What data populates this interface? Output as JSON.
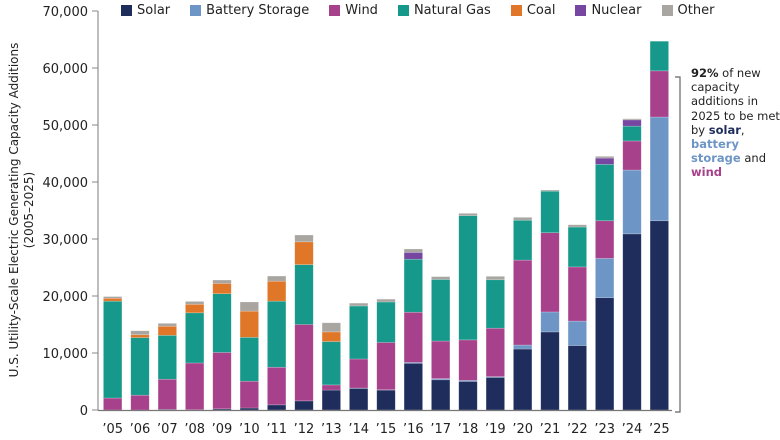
{
  "chart_data": {
    "type": "bar",
    "stacked": true,
    "title": "",
    "xlabel": "",
    "ylabel": "U.S. Utility-Scale Electric Generating Capacity Additions",
    "ylabel_sub": "(2005–2025)",
    "ylim": [
      0,
      70000
    ],
    "yticks": [
      0,
      10000,
      20000,
      30000,
      40000,
      50000,
      60000,
      70000
    ],
    "ytick_labels": [
      "0",
      "10,000",
      "20,000",
      "30,000",
      "40,000",
      "50,000",
      "60,000",
      "70,000"
    ],
    "grid": false,
    "legend_position": "top",
    "categories": [
      "’05",
      "’06",
      "’07",
      "’08",
      "’09",
      "’10",
      "’11",
      "’12",
      "’13",
      "’14",
      "’15",
      "’16",
      "’17",
      "’18",
      "’19",
      "’20",
      "’21",
      "’22",
      "’23",
      "’24",
      "’25"
    ],
    "series": [
      {
        "name": "Solar",
        "color": "#1f2d5c",
        "values": [
          0,
          0,
          100,
          50,
          200,
          350,
          900,
          1600,
          3500,
          3800,
          3500,
          8200,
          5300,
          5000,
          5700,
          10700,
          13700,
          11300,
          19700,
          30900,
          33200
        ]
      },
      {
        "name": "Battery Storage",
        "color": "#6d95c5",
        "values": [
          0,
          0,
          0,
          0,
          0,
          0,
          0,
          0,
          0,
          50,
          50,
          150,
          200,
          200,
          150,
          700,
          3500,
          4300,
          6900,
          11200,
          18200
        ]
      },
      {
        "name": "Wind",
        "color": "#a8418b",
        "values": [
          2100,
          2600,
          5300,
          8200,
          9900,
          4700,
          6600,
          13400,
          900,
          5100,
          8300,
          8800,
          6600,
          7100,
          8500,
          14900,
          13900,
          9500,
          6600,
          5100,
          8100
        ]
      },
      {
        "name": "Natural Gas",
        "color": "#16998a",
        "values": [
          17000,
          10100,
          7700,
          8800,
          10300,
          7700,
          11600,
          10500,
          7600,
          9300,
          7100,
          9300,
          10800,
          21800,
          8500,
          7000,
          7300,
          7000,
          9900,
          2600,
          5200
        ]
      },
      {
        "name": "Coal",
        "color": "#e07628",
        "values": [
          500,
          500,
          1600,
          1500,
          1800,
          4600,
          3500,
          4000,
          1700,
          0,
          0,
          0,
          0,
          0,
          0,
          0,
          0,
          0,
          0,
          0,
          0
        ]
      },
      {
        "name": "Nuclear",
        "color": "#7646a0",
        "values": [
          0,
          0,
          0,
          0,
          0,
          0,
          0,
          0,
          0,
          0,
          0,
          1200,
          0,
          0,
          0,
          0,
          0,
          0,
          1100,
          1100,
          0
        ]
      },
      {
        "name": "Other",
        "color": "#a9a5a1",
        "values": [
          300,
          700,
          500,
          500,
          600,
          1600,
          900,
          1200,
          1600,
          500,
          500,
          600,
          500,
          400,
          600,
          500,
          200,
          400,
          300,
          200,
          0
        ]
      }
    ],
    "annotation": {
      "bracket_range": [
        0,
        60000
      ],
      "pct": "92%",
      "text_1": " of new capacity additions in 2025 to be met by ",
      "solar": "solar",
      "comma": ", ",
      "battery": "battery storage",
      "and": " and ",
      "wind": "wind"
    }
  }
}
